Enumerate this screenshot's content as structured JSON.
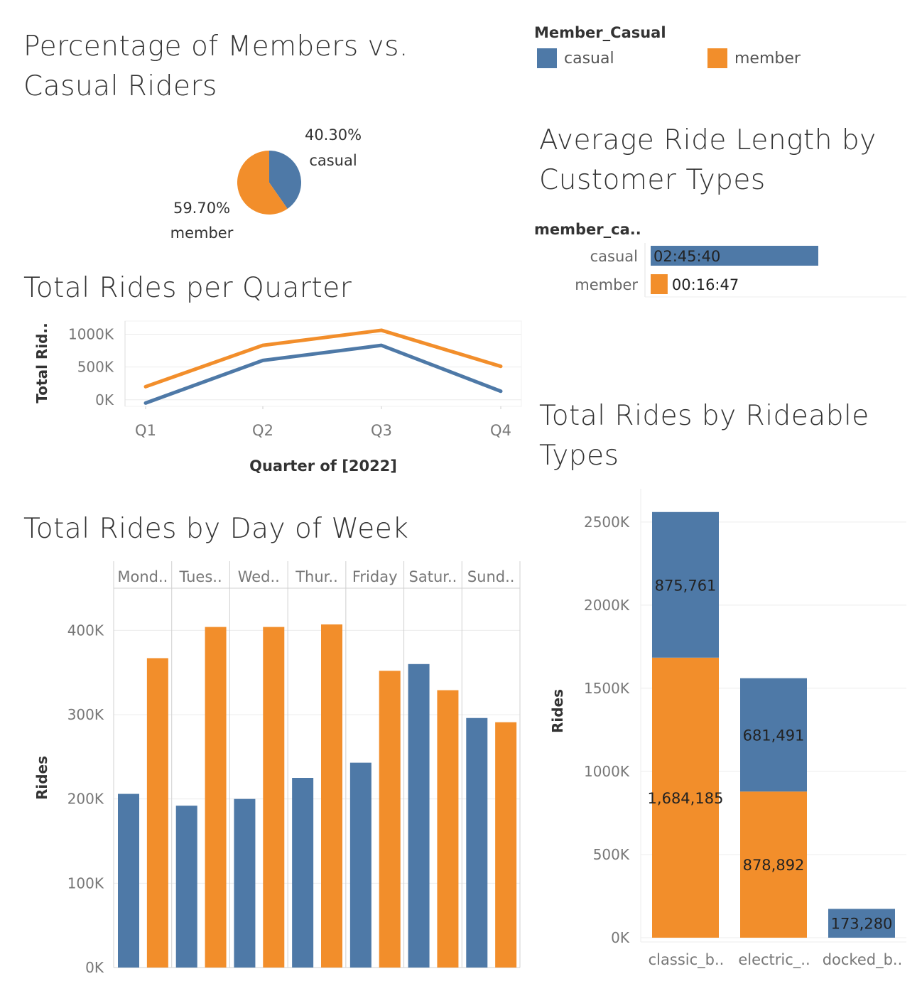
{
  "colors": {
    "casual": "#4e79a7",
    "member": "#f28e2b",
    "grid": "#ececec",
    "axis": "#d0d0d0",
    "text": "#333333",
    "tick": "#777777"
  },
  "legend": {
    "title": "Member_Casual",
    "items": [
      {
        "label": "casual",
        "color": "#4e79a7"
      },
      {
        "label": "member",
        "color": "#f28e2b"
      }
    ]
  },
  "titles": {
    "pie": "Percentage of Members vs. Casual Riders",
    "avg": "Average Ride Length by Customer Types",
    "quarter": "Total Rides per Quarter",
    "dow": "Total Rides by Day of Week",
    "rideable": "Total Rides by Rideable Types"
  },
  "chart_data": [
    {
      "id": "pie",
      "type": "pie",
      "title": "Percentage of Members vs. Casual Riders",
      "slices": [
        {
          "label": "casual",
          "value": 40.3,
          "display": "40.30%",
          "color": "#4e79a7"
        },
        {
          "label": "member",
          "value": 59.7,
          "display": "59.70%",
          "color": "#f28e2b"
        }
      ]
    },
    {
      "id": "avg",
      "type": "bar",
      "orientation": "horizontal",
      "title": "Average Ride Length by Customer Types",
      "row_header": "member_ca..",
      "categories": [
        "casual",
        "member"
      ],
      "values_seconds": [
        9940,
        1007
      ],
      "labels": [
        "02:45:40",
        "00:16:47"
      ],
      "colors": [
        "#4e79a7",
        "#f28e2b"
      ]
    },
    {
      "id": "quarter",
      "type": "line",
      "title": "Total Rides per Quarter",
      "xlabel": "Quarter of  [2022]",
      "ylabel": "Total Rid..",
      "categories": [
        "Q1",
        "Q2",
        "Q3",
        "Q4"
      ],
      "yticks": [
        0,
        500000,
        1000000
      ],
      "ytick_labels": [
        "0K",
        "500K",
        "1000K"
      ],
      "ylim": [
        -100000,
        1200000
      ],
      "series": [
        {
          "name": "casual",
          "color": "#4e79a7",
          "values": [
            -50000,
            600000,
            830000,
            130000
          ]
        },
        {
          "name": "member",
          "color": "#f28e2b",
          "values": [
            200000,
            830000,
            1060000,
            510000
          ]
        }
      ]
    },
    {
      "id": "dow",
      "type": "bar",
      "title": "Total Rides by Day of Week",
      "ylabel": "Rides",
      "categories": [
        "Mond..",
        "Tues..",
        "Wed..",
        "Thur..",
        "Friday",
        "Satur..",
        "Sund.."
      ],
      "yticks": [
        0,
        100000,
        200000,
        300000,
        400000
      ],
      "ytick_labels": [
        "0K",
        "100K",
        "200K",
        "300K",
        "400K"
      ],
      "ylim": [
        0,
        450000
      ],
      "series": [
        {
          "name": "casual",
          "color": "#4e79a7",
          "values": [
            206000,
            192000,
            200000,
            225000,
            243000,
            360000,
            296000
          ]
        },
        {
          "name": "member",
          "color": "#f28e2b",
          "values": [
            367000,
            404000,
            404000,
            407000,
            352000,
            329000,
            291000
          ]
        }
      ]
    },
    {
      "id": "rideable",
      "type": "bar",
      "stacked": true,
      "title": "Total Rides by Rideable Types",
      "ylabel": "Rides",
      "categories": [
        "classic_b..",
        "electric_..",
        "docked_b.."
      ],
      "yticks": [
        0,
        500000,
        1000000,
        1500000,
        2000000,
        2500000
      ],
      "ytick_labels": [
        "0K",
        "500K",
        "1000K",
        "1500K",
        "2000K",
        "2500K"
      ],
      "ylim": [
        0,
        2700000
      ],
      "series": [
        {
          "name": "member",
          "color": "#f28e2b",
          "values": [
            1684185,
            878892,
            0
          ],
          "labels": [
            "1,684,185",
            "878,892",
            ""
          ]
        },
        {
          "name": "casual",
          "color": "#4e79a7",
          "values": [
            875761,
            681491,
            173280
          ],
          "labels": [
            "875,761",
            "681,491",
            "173,280"
          ]
        }
      ]
    }
  ]
}
